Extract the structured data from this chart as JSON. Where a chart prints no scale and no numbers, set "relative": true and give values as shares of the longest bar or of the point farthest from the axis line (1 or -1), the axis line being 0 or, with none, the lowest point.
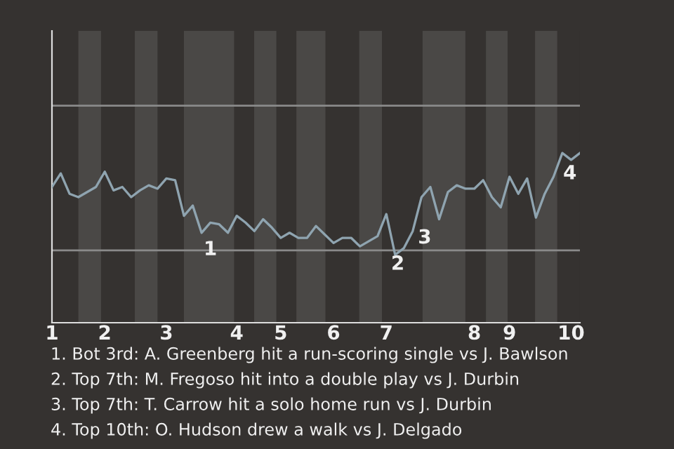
{
  "chart_data": {
    "type": "line",
    "relative": true,
    "categories": [
      "1",
      null,
      null,
      null,
      null,
      null,
      "2",
      null,
      null,
      null,
      null,
      null,
      null,
      "3",
      null,
      null,
      null,
      null,
      null,
      null,
      null,
      "4",
      null,
      null,
      null,
      null,
      "5",
      null,
      null,
      null,
      null,
      null,
      "6",
      null,
      null,
      null,
      null,
      null,
      "7",
      null,
      null,
      null,
      null,
      null,
      null,
      null,
      null,
      null,
      "8",
      null,
      null,
      null,
      "9",
      null,
      null,
      null,
      null,
      null,
      null,
      "10",
      null
    ],
    "series": [
      {
        "color": "#8fa4b0",
        "values": [
          0.8,
          0.88,
          0.76,
          0.74,
          0.77,
          0.8,
          0.89,
          0.78,
          0.8,
          0.74,
          0.78,
          0.81,
          0.79,
          0.85,
          0.84,
          0.63,
          0.69,
          0.53,
          0.59,
          0.58,
          0.53,
          0.63,
          0.59,
          0.54,
          0.61,
          0.56,
          0.5,
          0.53,
          0.5,
          0.5,
          0.57,
          0.52,
          0.47,
          0.5,
          0.5,
          0.45,
          0.48,
          0.51,
          0.64,
          0.4,
          0.44,
          0.54,
          0.74,
          0.8,
          0.61,
          0.77,
          0.81,
          0.79,
          0.79,
          0.84,
          0.74,
          0.68,
          0.86,
          0.76,
          0.85,
          0.62,
          0.76,
          0.86,
          1.0,
          0.96,
          1.0
        ]
      }
    ],
    "tick_labels": "x",
    "grid": false,
    "legend": false,
    "marker": "none",
    "line_style": "solid",
    "ref_lines": [
      {
        "axis": "y",
        "value": 0.426,
        "color": "#8a8a8a"
      },
      {
        "axis": "y",
        "value": 1.279,
        "color": "#8a8a8a"
      }
    ],
    "annotations": [
      "1",
      "2",
      "3",
      "4",
      "1. Bot 3rd: A. Greenberg hit a run-scoring single vs J. Bawlson",
      "2. Top 7th: M. Fregoso hit into a double play vs J. Durbin",
      "3. Top 7th: T. Carrow hit a solo home run vs J. Durbin",
      "4. Top 10th: O. Hudson drew a walk vs J. Delgado"
    ]
  }
}
